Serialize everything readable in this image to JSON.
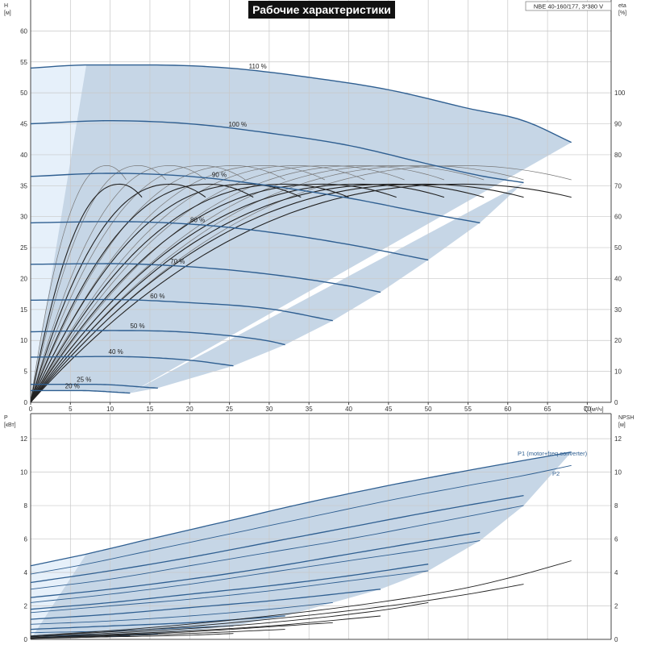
{
  "title": "Рабочие характеристики",
  "model": "NBE 40-160/177, 3*380 V",
  "colors": {
    "curve": "#2f5f91",
    "fill": "#c6d6e6",
    "fill_light": "#e6f0fa",
    "eff": "#222222",
    "eff_light": "#777777",
    "grid": "#c8c8c8"
  },
  "chart_data": [
    {
      "type": "line",
      "ylabel": "H",
      "yunit": "[м]",
      "y2label": "eta",
      "y2unit": "[%]",
      "xlabel": "Q",
      "xunit": "[м³/ч]",
      "xlim": [
        0,
        73
      ],
      "ylim": [
        0,
        65
      ],
      "y2lim": [
        0,
        130
      ],
      "xticks": [
        0,
        5,
        10,
        15,
        20,
        25,
        30,
        35,
        40,
        45,
        50,
        55,
        60,
        65,
        70
      ],
      "yticks": [
        0,
        5,
        10,
        15,
        20,
        25,
        30,
        35,
        40,
        45,
        50,
        55,
        60
      ],
      "y2ticks": [
        0,
        10,
        20,
        30,
        40,
        50,
        60,
        70,
        80,
        90,
        100
      ],
      "grid": true,
      "speed_curves": [
        {
          "label": "110 %",
          "x": [
            0,
            7,
            15,
            25,
            35,
            45,
            55,
            62,
            68
          ],
          "y": [
            54.0,
            54.5,
            54.5,
            54.0,
            52.5,
            50.5,
            47.5,
            45.5,
            42.0
          ]
        },
        {
          "label": "100 %",
          "x": [
            0,
            10,
            20,
            30,
            40,
            50,
            57,
            62
          ],
          "y": [
            45.0,
            45.5,
            45.0,
            43.5,
            41.5,
            38.5,
            36.5,
            35.5
          ]
        },
        {
          "label": "90 %",
          "x": [
            0,
            10,
            20,
            30,
            40,
            50,
            56.5
          ],
          "y": [
            36.5,
            37.0,
            36.5,
            35.0,
            33.0,
            30.5,
            29.0
          ]
        },
        {
          "label": "80 %",
          "x": [
            0,
            10,
            20,
            30,
            40,
            50
          ],
          "y": [
            29.0,
            29.2,
            28.8,
            27.5,
            25.5,
            23.0
          ]
        },
        {
          "label": "70 %",
          "x": [
            0,
            10,
            20,
            30,
            40,
            44
          ],
          "y": [
            22.3,
            22.4,
            21.9,
            20.7,
            18.8,
            17.8
          ]
        },
        {
          "label": "60 %",
          "x": [
            0,
            10,
            20,
            30,
            38
          ],
          "y": [
            16.5,
            16.6,
            16.1,
            15.1,
            13.2
          ]
        },
        {
          "label": "50 %",
          "x": [
            0,
            10,
            20,
            30,
            32
          ],
          "y": [
            11.4,
            11.6,
            11.3,
            9.9,
            9.3
          ]
        },
        {
          "label": "40 %",
          "x": [
            0,
            10,
            20,
            25.5
          ],
          "y": [
            7.3,
            7.4,
            6.8,
            5.9
          ]
        },
        {
          "label": "25 %",
          "x": [
            0,
            8,
            16
          ],
          "y": [
            2.9,
            2.9,
            2.3
          ]
        },
        {
          "label": "20 %",
          "x": [
            0,
            6,
            12.5
          ],
          "y": [
            1.9,
            1.9,
            1.5
          ]
        }
      ],
      "efficiency_peaks": [
        {
          "eta": 76.5,
          "qmax": 12.0
        },
        {
          "eta": 76.5,
          "qmax": 17.0
        },
        {
          "eta": 76.5,
          "qmax": 22.0
        },
        {
          "eta": 76.5,
          "qmax": 27.0
        },
        {
          "eta": 76.5,
          "qmax": 32.0
        },
        {
          "eta": 76.5,
          "qmax": 37.0
        },
        {
          "eta": 76.5,
          "qmax": 42.0
        },
        {
          "eta": 76.5,
          "qmax": 47.0
        },
        {
          "eta": 76.5,
          "qmax": 52.0
        },
        {
          "eta": 76.5,
          "qmax": 57.0
        },
        {
          "eta": 76.5,
          "qmax": 62.0
        },
        {
          "eta": 76.5,
          "qmax": 68.0
        },
        {
          "eta": 70.5,
          "qmax": 14.0
        },
        {
          "eta": 70.5,
          "qmax": 22.0
        },
        {
          "eta": 70.5,
          "qmax": 28.0
        },
        {
          "eta": 70.5,
          "qmax": 34.0
        },
        {
          "eta": 70.5,
          "qmax": 40.0
        },
        {
          "eta": 70.5,
          "qmax": 46.0
        },
        {
          "eta": 70.5,
          "qmax": 52.0
        },
        {
          "eta": 70.5,
          "qmax": 57.0
        },
        {
          "eta": 70.5,
          "qmax": 62.0
        },
        {
          "eta": 70.5,
          "qmax": 68.0
        }
      ]
    },
    {
      "type": "line",
      "ylabel": "P",
      "yunit": "[кВт]",
      "y2label": "NPSH",
      "y2unit": "[м]",
      "xlim": [
        0,
        73
      ],
      "ylim": [
        0,
        13.5
      ],
      "y2lim": [
        0,
        13.5
      ],
      "yticks": [
        0,
        2,
        4,
        6,
        8,
        10,
        12
      ],
      "y2ticks": [
        0,
        2,
        4,
        6,
        8,
        10,
        12
      ],
      "grid": true,
      "series": [
        {
          "name": "P1 (motor+freq.converter)",
          "x": [
            0,
            7,
            15,
            25,
            35,
            45,
            55,
            62,
            68
          ],
          "y": [
            4.4,
            5.1,
            6.0,
            7.1,
            8.2,
            9.2,
            10.1,
            10.7,
            11.2
          ]
        },
        {
          "name": "P2",
          "x": [
            0,
            7,
            15,
            25,
            35,
            45,
            55,
            62,
            68
          ],
          "y": [
            3.9,
            4.5,
            5.3,
            6.3,
            7.3,
            8.3,
            9.2,
            9.8,
            10.4
          ]
        },
        {
          "x": [
            0,
            10,
            20,
            30,
            40,
            50,
            62
          ],
          "y": [
            3.4,
            4.1,
            4.9,
            5.8,
            6.7,
            7.6,
            8.6
          ]
        },
        {
          "x": [
            0,
            10,
            20,
            30,
            40,
            50,
            62
          ],
          "y": [
            3.0,
            3.6,
            4.4,
            5.2,
            6.0,
            6.9,
            8.0
          ]
        },
        {
          "x": [
            0,
            10,
            20,
            30,
            40,
            50,
            56.5
          ],
          "y": [
            2.5,
            3.0,
            3.6,
            4.3,
            5.1,
            5.9,
            6.4
          ]
        },
        {
          "x": [
            0,
            10,
            20,
            30,
            40,
            50,
            56.5
          ],
          "y": [
            2.2,
            2.7,
            3.3,
            4.0,
            4.7,
            5.4,
            5.9
          ]
        },
        {
          "x": [
            0,
            10,
            20,
            30,
            40,
            50
          ],
          "y": [
            1.8,
            2.2,
            2.7,
            3.2,
            3.8,
            4.5
          ]
        },
        {
          "x": [
            0,
            10,
            20,
            30,
            40,
            50
          ],
          "y": [
            1.6,
            2.0,
            2.4,
            2.9,
            3.5,
            4.1
          ]
        },
        {
          "x": [
            0,
            10,
            20,
            30,
            44
          ],
          "y": [
            1.2,
            1.5,
            1.9,
            2.3,
            3.0
          ]
        },
        {
          "x": [
            0,
            10,
            20,
            30,
            38
          ],
          "y": [
            0.9,
            1.1,
            1.4,
            1.8,
            2.2
          ]
        },
        {
          "x": [
            0,
            10,
            20,
            32
          ],
          "y": [
            0.6,
            0.8,
            1.0,
            1.4
          ]
        },
        {
          "x": [
            0,
            10,
            20,
            25.5
          ],
          "y": [
            0.4,
            0.5,
            0.7,
            0.8
          ]
        },
        {
          "x": [
            0,
            8,
            16
          ],
          "y": [
            0.2,
            0.25,
            0.3
          ]
        },
        {
          "x": [
            0,
            6,
            12.5
          ],
          "y": [
            0.1,
            0.15,
            0.2
          ]
        }
      ],
      "npsh_curves": [
        {
          "x": [
            0,
            15,
            30,
            45,
            55,
            62,
            68
          ],
          "y": [
            0.2,
            0.7,
            1.4,
            2.3,
            3.1,
            3.9,
            4.7
          ]
        },
        {
          "x": [
            0,
            15,
            30,
            45,
            55,
            62
          ],
          "y": [
            0.2,
            0.6,
            1.2,
            2.0,
            2.7,
            3.3
          ]
        },
        {
          "x": [
            0,
            15,
            30,
            45,
            50
          ],
          "y": [
            0.15,
            0.5,
            1.0,
            1.8,
            2.2
          ]
        },
        {
          "x": [
            0,
            15,
            30,
            44
          ],
          "y": [
            0.1,
            0.4,
            0.8,
            1.4
          ]
        },
        {
          "x": [
            0,
            10,
            20,
            30,
            38
          ],
          "y": [
            0.1,
            0.25,
            0.45,
            0.75,
            1.0
          ]
        },
        {
          "x": [
            0,
            10,
            20,
            32
          ],
          "y": [
            0.05,
            0.2,
            0.35,
            0.6
          ]
        },
        {
          "x": [
            0,
            10,
            20,
            25.5
          ],
          "y": [
            0.05,
            0.15,
            0.25,
            0.35
          ]
        }
      ]
    }
  ]
}
